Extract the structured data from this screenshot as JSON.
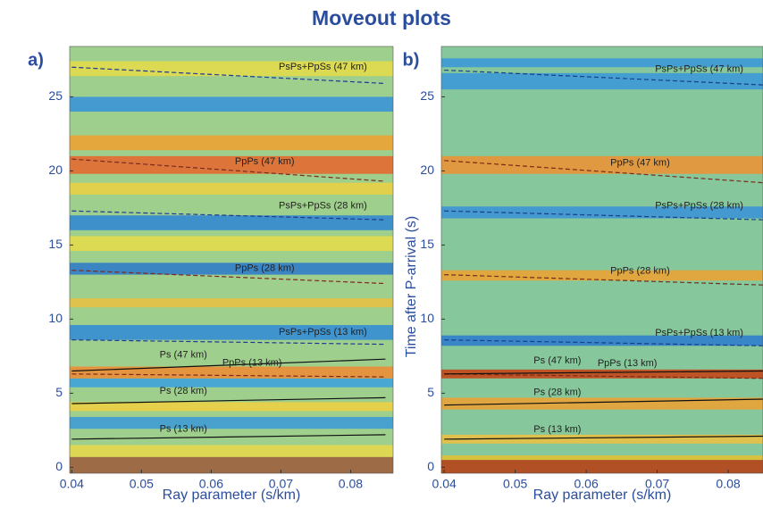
{
  "title": "Moveout plots",
  "chart_data": [
    {
      "type": "line",
      "label": "a)",
      "x_label": "Ray parameter (s/km)",
      "xlim": [
        0.0397,
        0.0861
      ],
      "ylim": [
        -0.4,
        28.4
      ],
      "xticks": [
        0.04,
        0.05,
        0.06,
        0.07,
        0.08
      ],
      "yticks": [
        0,
        5,
        10,
        15,
        20,
        25
      ],
      "background": "#9fcf8c",
      "bands": [
        {
          "from": -0.4,
          "to": 0.7,
          "color": "#9c5a3a"
        },
        {
          "from": 0.7,
          "to": 1.5,
          "color": "#e8d84a"
        },
        {
          "from": 2.6,
          "to": 3.4,
          "color": "#3a9ad8"
        },
        {
          "from": 3.8,
          "to": 4.4,
          "color": "#f0d040"
        },
        {
          "from": 5.4,
          "to": 6.0,
          "color": "#3aa0e0"
        },
        {
          "from": 6.0,
          "to": 6.8,
          "color": "#f08a30"
        },
        {
          "from": 8.6,
          "to": 9.6,
          "color": "#2f8ad8"
        },
        {
          "from": 10.8,
          "to": 11.4,
          "color": "#e9c040"
        },
        {
          "from": 13.0,
          "to": 13.8,
          "color": "#2a78cc"
        },
        {
          "from": 14.6,
          "to": 15.6,
          "color": "#e6dc48"
        },
        {
          "from": 16.0,
          "to": 17.0,
          "color": "#2d85d5"
        },
        {
          "from": 18.4,
          "to": 19.2,
          "color": "#ecd040"
        },
        {
          "from": 19.8,
          "to": 21.0,
          "color": "#e8642a"
        },
        {
          "from": 21.4,
          "to": 22.4,
          "color": "#f0a030"
        },
        {
          "from": 24.0,
          "to": 25.0,
          "color": "#3590da"
        },
        {
          "from": 26.4,
          "to": 27.4,
          "color": "#e6dc48"
        }
      ],
      "x": [
        0.04,
        0.085
      ],
      "series": [
        {
          "name": "PsPs+PpSs (47 km)",
          "color": "#1e3a8c",
          "dashed": true,
          "values": [
            27.0,
            25.9
          ]
        },
        {
          "name": "PpPs (47 km)",
          "color": "#7a2a20",
          "dashed": true,
          "values": [
            20.8,
            19.3
          ]
        },
        {
          "name": "PsPs+PpSs (28 km)",
          "color": "#1e3a8c",
          "dashed": true,
          "values": [
            17.3,
            16.7
          ]
        },
        {
          "name": "PpPs (28 km)",
          "color": "#7a2a20",
          "dashed": true,
          "values": [
            13.3,
            12.4
          ]
        },
        {
          "name": "PsPs+PpSs (13 km)",
          "color": "#1e3a8c",
          "dashed": true,
          "values": [
            8.6,
            8.3
          ]
        },
        {
          "name": "PpPs (13 km)",
          "color": "#7a2a20",
          "dashed": true,
          "values": [
            6.3,
            6.1
          ]
        },
        {
          "name": "Ps (47 km)",
          "color": "#111111",
          "dashed": false,
          "values": [
            6.5,
            7.3
          ]
        },
        {
          "name": "Ps (28 km)",
          "color": "#111111",
          "dashed": false,
          "values": [
            4.3,
            4.7
          ]
        },
        {
          "name": "Ps (13 km)",
          "color": "#111111",
          "dashed": false,
          "values": [
            1.9,
            2.2
          ]
        }
      ]
    },
    {
      "type": "line",
      "label": "b)",
      "x_label": "Ray parameter (s/km)",
      "y_label": "Time after P-arrival (s)",
      "xlim": [
        0.0396,
        0.0849
      ],
      "ylim": [
        -0.4,
        28.4
      ],
      "xticks": [
        0.04,
        0.05,
        0.06,
        0.07,
        0.08
      ],
      "yticks": [
        0,
        5,
        10,
        15,
        20,
        25
      ],
      "background": "#86c89c",
      "bands": [
        {
          "from": -0.4,
          "to": 0.5,
          "color": "#b83a10"
        },
        {
          "from": 0.5,
          "to": 0.8,
          "color": "#e8c030"
        },
        {
          "from": 1.6,
          "to": 2.2,
          "color": "#f0c040"
        },
        {
          "from": 3.9,
          "to": 4.7,
          "color": "#f0a030"
        },
        {
          "from": 6.0,
          "to": 6.6,
          "color": "#c84010"
        },
        {
          "from": 8.2,
          "to": 8.9,
          "color": "#2a7ad0"
        },
        {
          "from": 12.6,
          "to": 13.3,
          "color": "#f0a030"
        },
        {
          "from": 16.8,
          "to": 17.6,
          "color": "#3a90da"
        },
        {
          "from": 19.8,
          "to": 21.0,
          "color": "#f09030"
        },
        {
          "from": 25.5,
          "to": 26.6,
          "color": "#3a96dc"
        },
        {
          "from": 27.0,
          "to": 27.6,
          "color": "#3a96dc"
        }
      ],
      "x": [
        0.04,
        0.085
      ],
      "series": [
        {
          "name": "PsPs+PpSs (47 km)",
          "color": "#1e3a8c",
          "dashed": true,
          "values": [
            26.8,
            25.8
          ]
        },
        {
          "name": "PpPs (47 km)",
          "color": "#7a2a20",
          "dashed": true,
          "values": [
            20.7,
            19.2
          ]
        },
        {
          "name": "PsPs+PpSs (28 km)",
          "color": "#1e3a8c",
          "dashed": true,
          "values": [
            17.3,
            16.7
          ]
        },
        {
          "name": "PpPs (28 km)",
          "color": "#7a2a20",
          "dashed": true,
          "values": [
            13.0,
            12.3
          ]
        },
        {
          "name": "PsPs+PpSs (13 km)",
          "color": "#1e3a8c",
          "dashed": true,
          "values": [
            8.6,
            8.2
          ]
        },
        {
          "name": "PpPs (13 km)",
          "color": "#7a2a20",
          "dashed": true,
          "values": [
            6.3,
            6.0
          ]
        },
        {
          "name": "Ps (47 km)",
          "color": "#111111",
          "dashed": false,
          "values": [
            6.3,
            6.5
          ]
        },
        {
          "name": "Ps (28 km)",
          "color": "#111111",
          "dashed": false,
          "values": [
            4.2,
            4.6
          ]
        },
        {
          "name": "Ps (13 km)",
          "color": "#111111",
          "dashed": false,
          "values": [
            1.9,
            2.1
          ]
        }
      ]
    }
  ]
}
